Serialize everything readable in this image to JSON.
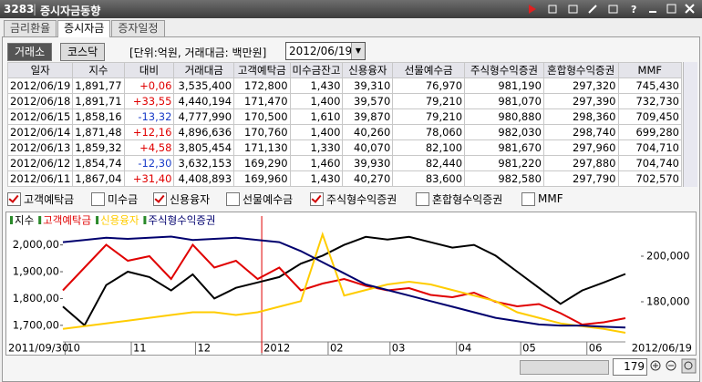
{
  "window": {
    "code": "3283",
    "title": "증시자금동향"
  },
  "tabs": [
    "금리환율",
    "증시자금",
    "증자일정"
  ],
  "active_tab": 1,
  "markets": [
    "거래소",
    "코스닥"
  ],
  "active_market": 0,
  "unit_note": "[단위:억원, 거래대금: 백만원]",
  "date": "2012/06/19",
  "table": {
    "columns": [
      "일자",
      "지수",
      "대비",
      "거래대금",
      "고객예탁금",
      "미수금잔고",
      "신용융자",
      "선물예수금",
      "주식형수익증권",
      "혼합형수익증권",
      "MMF"
    ],
    "rows": [
      [
        "2012/06/19",
        "1,891,77",
        "+0,06",
        "3,535,400",
        "172,800",
        "1,430",
        "39,310",
        "76,970",
        "981,190",
        "297,320",
        "745,430"
      ],
      [
        "2012/06/18",
        "1,891,71",
        "+33,55",
        "4,440,194",
        "171,470",
        "1,400",
        "39,570",
        "79,210",
        "981,070",
        "297,390",
        "732,730"
      ],
      [
        "2012/06/15",
        "1,858,16",
        "-13,32",
        "4,777,990",
        "170,500",
        "1,610",
        "39,870",
        "79,210",
        "980,880",
        "298,360",
        "709,450"
      ],
      [
        "2012/06/14",
        "1,871,48",
        "+12,16",
        "4,896,636",
        "170,760",
        "1,400",
        "40,260",
        "78,060",
        "982,030",
        "298,740",
        "699,280"
      ],
      [
        "2012/06/13",
        "1,859,32",
        "+4,58",
        "3,805,454",
        "171,130",
        "1,330",
        "40,070",
        "82,100",
        "981,670",
        "297,960",
        "704,710"
      ],
      [
        "2012/06/12",
        "1,854,74",
        "-12,30",
        "3,632,153",
        "169,290",
        "1,460",
        "39,930",
        "82,440",
        "981,220",
        "297,880",
        "704,740"
      ],
      [
        "2012/06/11",
        "1,867,04",
        "+31,40",
        "4,408,893",
        "169,960",
        "1,430",
        "40,270",
        "83,600",
        "982,580",
        "297,790",
        "702,570"
      ]
    ]
  },
  "checkboxes": [
    {
      "label": "고객예탁금",
      "checked": true
    },
    {
      "label": "미수금",
      "checked": false
    },
    {
      "label": "신용융자",
      "checked": true
    },
    {
      "label": "선물예수금",
      "checked": false
    },
    {
      "label": "주식형수익증권",
      "checked": true
    },
    {
      "label": "혼합형수익증권",
      "checked": false
    },
    {
      "label": "MMF",
      "checked": false
    }
  ],
  "chart_data": {
    "type": "line",
    "start_label": "2011/09/30",
    "end_label": "2012/06/19",
    "xlim": [
      0,
      26
    ],
    "xticks": [
      {
        "value": 0.1,
        "label": "10"
      },
      {
        "value": 3.16,
        "label": "11"
      },
      {
        "value": 6.13,
        "label": "12"
      },
      {
        "value": 9.19,
        "label": "2012"
      },
      {
        "value": 12.26,
        "label": "02"
      },
      {
        "value": 15.12,
        "label": "03"
      },
      {
        "value": 18.19,
        "label": "04"
      },
      {
        "value": 21.16,
        "label": "05"
      },
      {
        "value": 24.22,
        "label": "06"
      }
    ],
    "ylim": [
      1645,
      2060
    ],
    "yticks": [
      {
        "value": 2000,
        "label": "2,000,00"
      },
      {
        "value": 1900,
        "label": "1,900,00"
      },
      {
        "value": 1800,
        "label": "1,800,00"
      },
      {
        "value": 1700,
        "label": "1,700,00"
      }
    ],
    "y2lim": [
      163200,
      212000
    ],
    "y2ticks": [
      {
        "value": 200000,
        "label": "200,000"
      },
      {
        "value": 180000,
        "label": "180,000"
      }
    ],
    "series": [
      {
        "name": "지수",
        "color": "#000000",
        "values": [
          1770,
          1700,
          1850,
          1900,
          1880,
          1830,
          1890,
          1800,
          1840,
          1860,
          1880,
          1930,
          1960,
          2000,
          2030,
          2020,
          2030,
          2010,
          1990,
          2000,
          1960,
          1900,
          1840,
          1780,
          1830,
          1860,
          1891.77
        ]
      },
      {
        "name": "고객예탁금",
        "color": "#e00000",
        "axis": "y2",
        "values": [
          185000,
          195000,
          205000,
          198000,
          200000,
          190000,
          205000,
          195000,
          198000,
          190000,
          195000,
          185000,
          188000,
          190000,
          187000,
          185000,
          186000,
          183000,
          182000,
          184000,
          180000,
          178000,
          179000,
          175000,
          170000,
          171000,
          172800
        ]
      },
      {
        "name": "신용융자",
        "color": "#ffcc00",
        "ylim": [
          38000,
          58000
        ],
        "values": [
          40000,
          40500,
          41000,
          41500,
          42000,
          42500,
          43000,
          43000,
          42500,
          43000,
          44000,
          45000,
          57000,
          46000,
          47000,
          48000,
          48500,
          48000,
          47000,
          46000,
          45000,
          43000,
          42000,
          41000,
          40500,
          40000,
          39310
        ]
      },
      {
        "name": "주식형수익증권",
        "color": "#00006e",
        "ylim": [
          970000,
          1070000
        ],
        "values": [
          1058000,
          1060000,
          1062000,
          1061000,
          1062000,
          1063000,
          1060000,
          1061000,
          1062000,
          1060000,
          1058000,
          1050000,
          1040000,
          1030000,
          1020000,
          1015000,
          1010000,
          1005000,
          1000000,
          995000,
          990000,
          987000,
          984000,
          983000,
          983000,
          982000,
          981190
        ]
      }
    ]
  },
  "zoom": "179"
}
